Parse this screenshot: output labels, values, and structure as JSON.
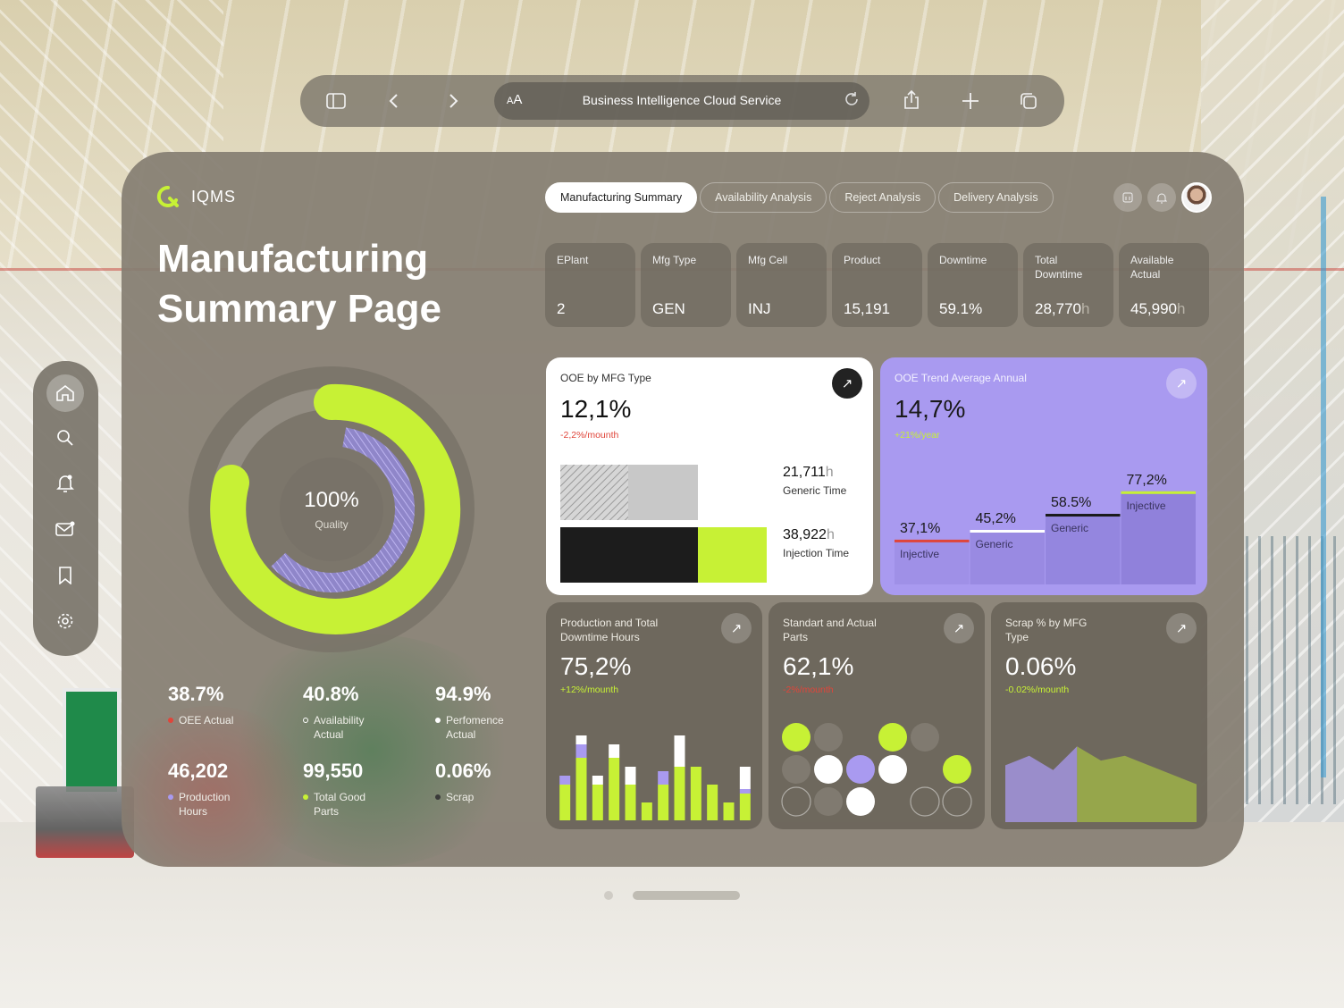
{
  "browser": {
    "url_text": "Business Intelligence Cloud Service",
    "text_size_small": "A",
    "text_size_large": "A"
  },
  "app": {
    "logo_text": "IQMS",
    "page_title": "Manufacturing Summary Page"
  },
  "tabs": [
    {
      "label": "Manufacturing Summary",
      "active": true
    },
    {
      "label": "Availability Analysis",
      "active": false
    },
    {
      "label": "Reject Analysis",
      "active": false
    },
    {
      "label": "Delivery Analysis",
      "active": false
    }
  ],
  "kpis": [
    {
      "label": "EPlant",
      "value": "2",
      "unit": ""
    },
    {
      "label": "Mfg Type",
      "value": "GEN",
      "unit": ""
    },
    {
      "label": "Mfg Cell",
      "value": "INJ",
      "unit": ""
    },
    {
      "label": "Product",
      "value": "15,191",
      "unit": ""
    },
    {
      "label": "Downtime",
      "value": "59.1%",
      "unit": ""
    },
    {
      "label": "Total Downtime",
      "value": "28,770",
      "unit": "h"
    },
    {
      "label": "Available Actual",
      "value": "45,990",
      "unit": "h"
    }
  ],
  "sidebar_icons": [
    "home-icon",
    "search-icon",
    "bell-icon",
    "mail-icon",
    "bookmark-icon",
    "settings-icon"
  ],
  "quality": {
    "value": "100%",
    "label": "Quality",
    "fill_fraction": 1.0
  },
  "stats": [
    {
      "value": "38.7%",
      "label": "OEE Actual",
      "dot": "#e0453a",
      "hollow": false
    },
    {
      "value": "40.8%",
      "label": "Availability Actual",
      "dot": "#ffffff",
      "hollow": true
    },
    {
      "value": "94.9%",
      "label": "Perfomence Actual",
      "dot": "#ffffff",
      "hollow": false
    },
    {
      "value": "46,202",
      "label": "Production Hours",
      "dot": "#a99af0",
      "hollow": false
    },
    {
      "value": "99,550",
      "label": "Total Good Parts",
      "dot": "#c7f135",
      "hollow": false
    },
    {
      "value": "0.06%",
      "label": "Scrap",
      "dot": "#3a3a3a",
      "hollow": false
    }
  ],
  "ooe_by_mfg": {
    "title": "OOE by MFG Type",
    "value": "12,1%",
    "delta": "-2,2%/mounth",
    "items": [
      {
        "value": "21,711",
        "unit": "h",
        "label": "Generic Time"
      },
      {
        "value": "38,922",
        "unit": "h",
        "label": "Injection Time"
      }
    ]
  },
  "ooe_trend": {
    "title": "OOE Trend Average Annual",
    "value": "14,7%",
    "delta": "+21%/year",
    "steps": [
      {
        "value": "37,1%",
        "label": "Injective",
        "line": "#e0453a",
        "pct": 37.1
      },
      {
        "value": "45,2%",
        "label": "Generic",
        "line": "#ffffff",
        "pct": 45.2
      },
      {
        "value": "58.5%",
        "label": "Generic",
        "line": "#1a1a1a",
        "pct": 58.5
      },
      {
        "value": "77,2%",
        "label": "Injective",
        "line": "#c7f135",
        "pct": 77.2
      }
    ]
  },
  "production_card": {
    "title": "Production and Total Downtime Hours",
    "value": "75,2%",
    "delta": "+12%/mounth"
  },
  "parts_card": {
    "title": "Standart and Actual Parts",
    "value": "62,1%",
    "delta": "-2%/mounth"
  },
  "scrap_card": {
    "title": "Scrap % by MFG Type",
    "value": "0.06%",
    "delta": "-0.02%/mounth"
  },
  "colors": {
    "accent_lime": "#c7f135",
    "accent_purple": "#a99af0",
    "negative_red": "#e0453a"
  },
  "chart_data": [
    {
      "type": "bar",
      "title": "Production and Total Downtime Hours",
      "categories": [
        "1",
        "2",
        "3",
        "4",
        "5",
        "6",
        "7",
        "8",
        "9",
        "10",
        "11",
        "12"
      ],
      "series": [
        {
          "name": "",
          "values": [
            4,
            7,
            4,
            7,
            4,
            2,
            4,
            6,
            6,
            4,
            2,
            3
          ]
        },
        {
          "name": "",
          "values": [
            1,
            1.5,
            0,
            0,
            0,
            0,
            1.5,
            0,
            0,
            0,
            0,
            0.5
          ]
        },
        {
          "name": "",
          "values": [
            0,
            1,
            1,
            1.5,
            2,
            0,
            0,
            3.5,
            0,
            0,
            0,
            2.5
          ]
        }
      ]
    },
    {
      "type": "scatter",
      "title": "Standart and Actual Parts",
      "points": [
        {
          "col": 1,
          "row": 1,
          "kind": "lime"
        },
        {
          "col": 2,
          "row": 1,
          "kind": "dim"
        },
        {
          "col": 4,
          "row": 1,
          "kind": "lime"
        },
        {
          "col": 5,
          "row": 1,
          "kind": "dim"
        },
        {
          "col": 1,
          "row": 2,
          "kind": "dim"
        },
        {
          "col": 2,
          "row": 2,
          "kind": "white"
        },
        {
          "col": 3,
          "row": 2,
          "kind": "purple"
        },
        {
          "col": 4,
          "row": 2,
          "kind": "white"
        },
        {
          "col": 6,
          "row": 2,
          "kind": "lime"
        },
        {
          "col": 1,
          "row": 3,
          "kind": "outline"
        },
        {
          "col": 2,
          "row": 3,
          "kind": "dim"
        },
        {
          "col": 3,
          "row": 3,
          "kind": "white"
        },
        {
          "col": 5,
          "row": 3,
          "kind": "outline"
        },
        {
          "col": 6,
          "row": 3,
          "kind": "outline"
        }
      ]
    },
    {
      "type": "area",
      "title": "Scrap % by MFG Type",
      "x": [
        0,
        1,
        2,
        3,
        4,
        5,
        6,
        7,
        8
      ],
      "series": [
        {
          "name": "",
          "values": [
            6,
            7,
            5.5,
            8,
            6.5,
            7,
            6,
            5,
            4
          ]
        }
      ]
    }
  ]
}
